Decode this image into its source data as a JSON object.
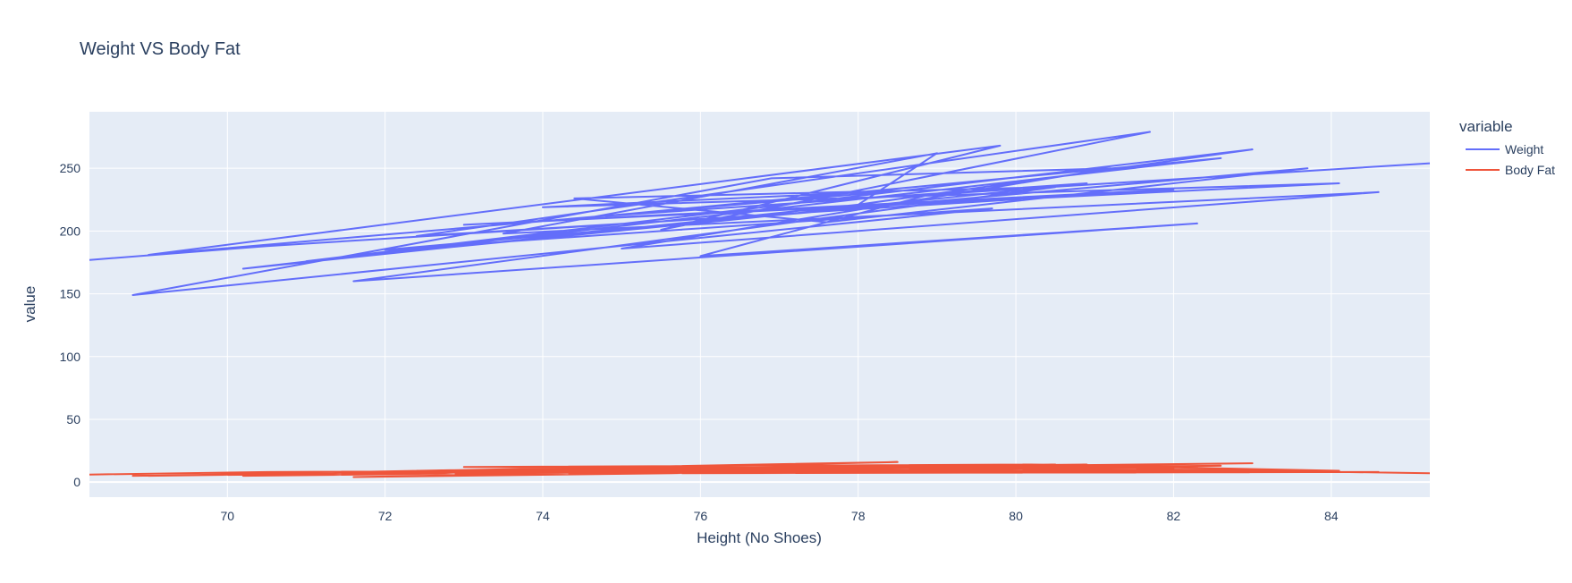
{
  "chart_data": {
    "type": "line",
    "title": "Weight VS Body Fat",
    "xlabel": "Height (No Shoes)",
    "ylabel": "value",
    "xlim": [
      68.25,
      85.25
    ],
    "ylim": [
      -12,
      295
    ],
    "x_ticks": [
      70,
      72,
      74,
      76,
      78,
      80,
      82,
      84
    ],
    "y_ticks": [
      0,
      50,
      100,
      150,
      200,
      250
    ],
    "grid": true,
    "plot_background": "#e5ecf6",
    "legend": {
      "title": "variable",
      "position": "right"
    },
    "x": [
      68.25,
      70.5,
      82.0,
      73.0,
      80.2,
      84.1,
      74.0,
      78.5,
      69.0,
      79.8,
      75.5,
      81.7,
      72.4,
      77.2,
      83.0,
      71.0,
      76.4,
      80.9,
      74.8,
      82.6,
      70.2,
      78.0,
      79.0,
      73.5,
      84.6,
      75.0,
      81.2,
      76.9,
      68.8,
      79.7,
      72.0,
      83.7,
      77.6,
      74.4,
      80.5,
      71.6,
      82.3,
      76.0,
      78.9,
      85.25
    ],
    "series": [
      {
        "name": "Weight",
        "color": "#636efa",
        "values": [
          177,
          188,
          233,
          205,
          226,
          238,
          219,
          232,
          181,
          268,
          201,
          279,
          196,
          214,
          265,
          176,
          209,
          238,
          212,
          258,
          170,
          221,
          262,
          198,
          231,
          186,
          250,
          242,
          149,
          218,
          185,
          250,
          207,
          226,
          235,
          160,
          206,
          180,
          229,
          254
        ]
      },
      {
        "name": "Body Fat",
        "color": "#ef553b",
        "values": [
          6,
          8,
          11,
          12,
          14,
          9,
          10,
          16,
          5,
          13,
          7,
          12,
          9,
          11,
          15,
          6,
          8,
          14,
          10,
          13,
          5,
          12,
          11,
          9,
          8,
          7,
          13,
          10,
          5,
          12,
          7,
          9,
          11,
          10,
          14,
          4,
          12,
          8,
          13,
          7
        ]
      }
    ]
  }
}
